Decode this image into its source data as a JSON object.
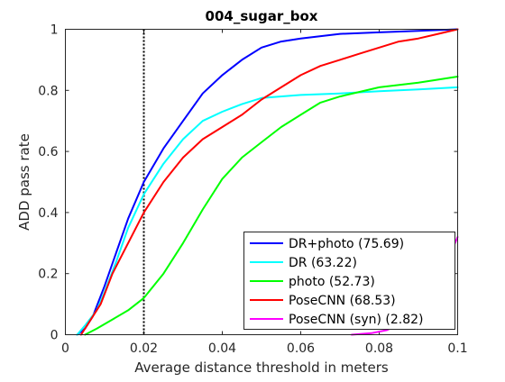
{
  "chart_data": {
    "type": "line",
    "title": "004_sugar_box",
    "xlabel": "Average distance threshold in meters",
    "ylabel": "ADD pass rate",
    "xlim": [
      0,
      0.1
    ],
    "ylim": [
      0,
      1
    ],
    "x_ticks": [
      0,
      0.02,
      0.04,
      0.06,
      0.08,
      0.1
    ],
    "x_tick_labels": [
      "0",
      "0.02",
      "0.04",
      "0.06",
      "0.08",
      "0.1"
    ],
    "y_ticks": [
      0,
      0.2,
      0.4,
      0.6,
      0.8,
      1
    ],
    "y_tick_labels": [
      "0",
      "0.2",
      "0.4",
      "0.6",
      "0.8",
      "1"
    ],
    "grid": false,
    "legend_position": "bottom-right",
    "annotations": [
      {
        "type": "vertical-dotted-line",
        "x": 0.02,
        "color": "#000000"
      }
    ],
    "series": [
      {
        "name": "DR+photo (75.69)",
        "color": "#0000ff",
        "points": [
          [
            0.003,
            0.0
          ],
          [
            0.005,
            0.02
          ],
          [
            0.007,
            0.06
          ],
          [
            0.01,
            0.16
          ],
          [
            0.013,
            0.27
          ],
          [
            0.016,
            0.38
          ],
          [
            0.02,
            0.5
          ],
          [
            0.025,
            0.61
          ],
          [
            0.03,
            0.7
          ],
          [
            0.035,
            0.79
          ],
          [
            0.04,
            0.85
          ],
          [
            0.045,
            0.9
          ],
          [
            0.05,
            0.94
          ],
          [
            0.055,
            0.96
          ],
          [
            0.06,
            0.97
          ],
          [
            0.07,
            0.985
          ],
          [
            0.08,
            0.99
          ],
          [
            0.09,
            0.995
          ],
          [
            0.1,
            1.0
          ]
        ]
      },
      {
        "name": "DR (63.22)",
        "color": "#00ffff",
        "points": [
          [
            0.003,
            0.0
          ],
          [
            0.005,
            0.03
          ],
          [
            0.008,
            0.08
          ],
          [
            0.01,
            0.14
          ],
          [
            0.013,
            0.24
          ],
          [
            0.016,
            0.35
          ],
          [
            0.02,
            0.46
          ],
          [
            0.025,
            0.56
          ],
          [
            0.03,
            0.64
          ],
          [
            0.035,
            0.7
          ],
          [
            0.04,
            0.73
          ],
          [
            0.045,
            0.755
          ],
          [
            0.05,
            0.775
          ],
          [
            0.06,
            0.785
          ],
          [
            0.07,
            0.79
          ],
          [
            0.08,
            0.797
          ],
          [
            0.09,
            0.803
          ],
          [
            0.1,
            0.81
          ]
        ]
      },
      {
        "name": "photo (52.73)",
        "color": "#00ff00",
        "points": [
          [
            0.005,
            0.0
          ],
          [
            0.008,
            0.02
          ],
          [
            0.012,
            0.05
          ],
          [
            0.016,
            0.08
          ],
          [
            0.02,
            0.12
          ],
          [
            0.025,
            0.2
          ],
          [
            0.03,
            0.3
          ],
          [
            0.035,
            0.41
          ],
          [
            0.04,
            0.51
          ],
          [
            0.045,
            0.58
          ],
          [
            0.05,
            0.63
          ],
          [
            0.055,
            0.68
          ],
          [
            0.06,
            0.72
          ],
          [
            0.065,
            0.76
          ],
          [
            0.07,
            0.78
          ],
          [
            0.075,
            0.795
          ],
          [
            0.08,
            0.81
          ],
          [
            0.09,
            0.825
          ],
          [
            0.1,
            0.845
          ]
        ]
      },
      {
        "name": "PoseCNN (68.53)",
        "color": "#ff0000",
        "points": [
          [
            0.004,
            0.0
          ],
          [
            0.006,
            0.04
          ],
          [
            0.009,
            0.1
          ],
          [
            0.012,
            0.2
          ],
          [
            0.016,
            0.3
          ],
          [
            0.02,
            0.4
          ],
          [
            0.025,
            0.5
          ],
          [
            0.03,
            0.58
          ],
          [
            0.035,
            0.64
          ],
          [
            0.04,
            0.68
          ],
          [
            0.045,
            0.72
          ],
          [
            0.05,
            0.77
          ],
          [
            0.055,
            0.81
          ],
          [
            0.06,
            0.85
          ],
          [
            0.065,
            0.88
          ],
          [
            0.07,
            0.9
          ],
          [
            0.075,
            0.92
          ],
          [
            0.08,
            0.94
          ],
          [
            0.085,
            0.96
          ],
          [
            0.09,
            0.97
          ],
          [
            0.095,
            0.985
          ],
          [
            0.1,
            1.0
          ]
        ]
      },
      {
        "name": "PoseCNN (syn) (2.82)",
        "color": "#ff00ff",
        "points": [
          [
            0.073,
            0.0
          ],
          [
            0.078,
            0.005
          ],
          [
            0.082,
            0.015
          ],
          [
            0.086,
            0.04
          ],
          [
            0.09,
            0.09
          ],
          [
            0.094,
            0.16
          ],
          [
            0.097,
            0.23
          ],
          [
            0.1,
            0.32
          ]
        ]
      }
    ]
  }
}
